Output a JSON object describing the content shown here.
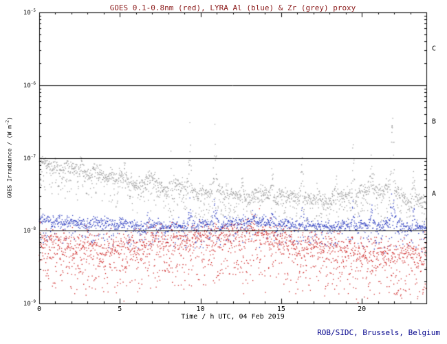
{
  "footer": {
    "credit": "ROB/SIDC, Brussels, Belgium",
    "color": "#00008b"
  },
  "chart_data": {
    "type": "scatter",
    "title": "GOES 0.1-0.8nm (red), LYRA Al (blue) & Zr (grey) proxy",
    "title_color": "#8b1a1a",
    "xlabel": "Time / h UTC, 04 Feb 2019",
    "ylabel_pre": "GOES Irradiance / (W m",
    "ylabel_sup": "-2",
    "ylabel_post": ")",
    "xlim": [
      0,
      24
    ],
    "xticks_major": [
      0,
      5,
      10,
      15,
      20
    ],
    "x_minor_step_h": 1,
    "yscale": "log",
    "ylim_exp": [
      -9,
      -5
    ],
    "ytick_exponents": [
      -5,
      -6,
      -7,
      -8,
      -9
    ],
    "hlines_exp": [
      -6,
      -7,
      -8
    ],
    "class_bands": [
      {
        "label": "C",
        "between_exp": [
          -6,
          -5
        ]
      },
      {
        "label": "B",
        "between_exp": [
          -7,
          -6
        ]
      },
      {
        "label": "A",
        "between_exp": [
          -8,
          -7
        ]
      }
    ],
    "grid": false,
    "legend": "colors named in title",
    "orbit_period_h": 1.65,
    "series": [
      {
        "name": "LYRA Zr proxy",
        "color": "#9a9a9a",
        "dots_per_hour": 75,
        "sigma": 0.05,
        "tail_prob": 0.3,
        "tail_max": 0.35,
        "orbit_amp": 0.09,
        "trend": [
          [
            0,
            -7.08
          ],
          [
            0.5,
            -7.1
          ],
          [
            1,
            -7.12
          ],
          [
            1.5,
            -7.1
          ],
          [
            2,
            -7.16
          ],
          [
            2.5,
            -7.14
          ],
          [
            3,
            -7.2
          ],
          [
            3.5,
            -7.18
          ],
          [
            4,
            -7.28
          ],
          [
            4.5,
            -7.22
          ],
          [
            5,
            -7.28
          ],
          [
            5.5,
            -7.32
          ],
          [
            6,
            -7.38
          ],
          [
            6.5,
            -7.32
          ],
          [
            7,
            -7.3
          ],
          [
            7.5,
            -7.38
          ],
          [
            8,
            -7.45
          ],
          [
            8.5,
            -7.4
          ],
          [
            9,
            -7.42
          ],
          [
            9.7,
            -7.45
          ],
          [
            10.3,
            -7.5
          ],
          [
            11.3,
            -7.42
          ],
          [
            12,
            -7.52
          ],
          [
            12.5,
            -7.48
          ],
          [
            13,
            -7.55
          ],
          [
            13.5,
            -7.5
          ],
          [
            14,
            -7.48
          ],
          [
            15,
            -7.55
          ],
          [
            16,
            -7.52
          ],
          [
            17,
            -7.6
          ],
          [
            18,
            -7.55
          ],
          [
            19,
            -7.52
          ],
          [
            20,
            -7.48
          ],
          [
            21,
            -7.42
          ],
          [
            22,
            -7.45
          ],
          [
            23,
            -7.58
          ],
          [
            24,
            -7.62
          ]
        ],
        "spikes": [
          {
            "t": 2.6,
            "w": 0.07,
            "amp": 0.12
          },
          {
            "t": 5.3,
            "w": 0.07,
            "amp": 0.1
          },
          {
            "t": 8.15,
            "w": 0.08,
            "amp": 0.2
          },
          {
            "t": 9.35,
            "w": 0.1,
            "amp": 0.5
          },
          {
            "t": 10.9,
            "w": 0.12,
            "amp": 0.68
          },
          {
            "t": 12.6,
            "w": 0.07,
            "amp": 0.15
          },
          {
            "t": 14.45,
            "w": 0.09,
            "amp": 0.3
          },
          {
            "t": 16.3,
            "w": 0.1,
            "amp": 0.38
          },
          {
            "t": 17.3,
            "w": 0.07,
            "amp": 0.2
          },
          {
            "t": 18.4,
            "w": 0.07,
            "amp": 0.18
          },
          {
            "t": 19.45,
            "w": 0.09,
            "amp": 0.42
          },
          {
            "t": 20.6,
            "w": 0.1,
            "amp": 0.5
          },
          {
            "t": 21.9,
            "w": 0.11,
            "amp": 0.68
          },
          {
            "t": 23.2,
            "w": 0.08,
            "amp": 0.3
          }
        ]
      },
      {
        "name": "LYRA Al proxy",
        "color": "#2233bb",
        "dots_per_hour": 65,
        "sigma": 0.04,
        "tail_prob": 0.25,
        "tail_max": 0.3,
        "orbit_amp": 0.05,
        "trend": [
          [
            0,
            -7.86
          ],
          [
            2,
            -7.88
          ],
          [
            4,
            -7.9
          ],
          [
            6,
            -7.92
          ],
          [
            8,
            -7.94
          ],
          [
            10,
            -7.92
          ],
          [
            12,
            -7.9
          ],
          [
            13,
            -7.86
          ],
          [
            14,
            -7.88
          ],
          [
            16,
            -7.92
          ],
          [
            18,
            -7.94
          ],
          [
            20,
            -7.94
          ],
          [
            22,
            -7.9
          ],
          [
            24,
            -7.98
          ]
        ],
        "spikes": [
          {
            "t": 9.35,
            "w": 0.1,
            "amp": 0.22
          },
          {
            "t": 10.9,
            "w": 0.12,
            "amp": 0.3
          },
          {
            "t": 14.45,
            "w": 0.09,
            "amp": 0.12
          },
          {
            "t": 16.3,
            "w": 0.1,
            "amp": 0.15
          },
          {
            "t": 19.45,
            "w": 0.09,
            "amp": 0.18
          },
          {
            "t": 20.6,
            "w": 0.1,
            "amp": 0.22
          },
          {
            "t": 21.9,
            "w": 0.11,
            "amp": 0.3
          },
          {
            "t": 23.2,
            "w": 0.08,
            "amp": 0.12
          }
        ]
      },
      {
        "name": "GOES 0.1-0.8nm",
        "color": "#cc2222",
        "dots_per_hour": 85,
        "sigma": 0.1,
        "tail_prob": 0.35,
        "tail_max": 0.6,
        "orbit_amp": 0,
        "trend": [
          [
            0,
            -8.12
          ],
          [
            1,
            -8.18
          ],
          [
            2,
            -8.22
          ],
          [
            3,
            -8.2
          ],
          [
            4,
            -8.25
          ],
          [
            5,
            -8.22
          ],
          [
            6,
            -8.18
          ],
          [
            7,
            -8.15
          ],
          [
            8,
            -8.1
          ],
          [
            9,
            -8.12
          ],
          [
            10,
            -8.1
          ],
          [
            11,
            -8.08
          ],
          [
            12,
            -8.05
          ],
          [
            13,
            -8.02
          ],
          [
            14,
            -8.06
          ],
          [
            15,
            -8.12
          ],
          [
            16,
            -8.18
          ],
          [
            17,
            -8.2
          ],
          [
            18,
            -8.22
          ],
          [
            19,
            -8.25
          ],
          [
            20,
            -8.28
          ],
          [
            21,
            -8.3
          ],
          [
            22,
            -8.32
          ],
          [
            23,
            -8.3
          ],
          [
            24,
            -8.35
          ]
        ],
        "spikes": []
      }
    ]
  }
}
